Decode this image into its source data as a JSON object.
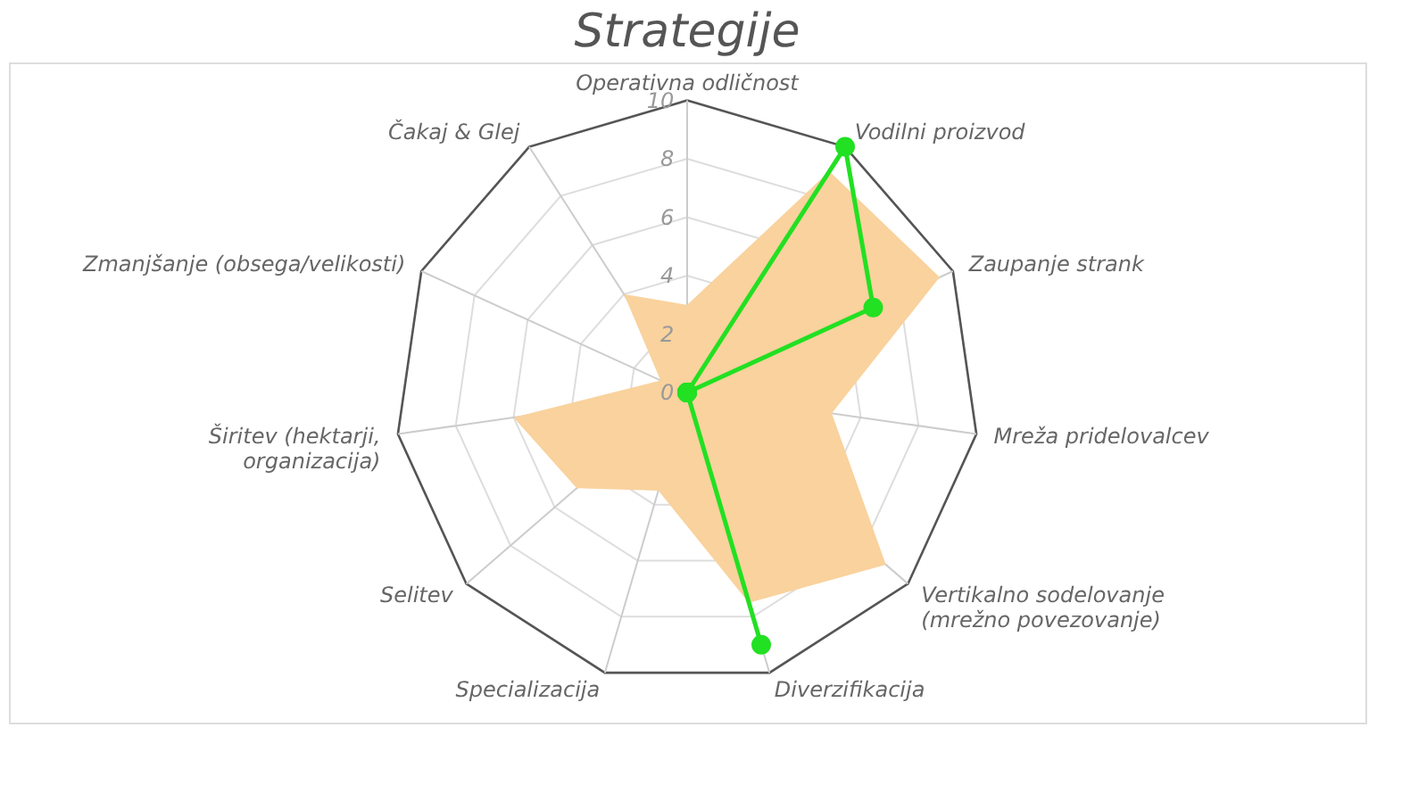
{
  "chart_data": {
    "type": "radar",
    "title": "Strategije",
    "categories": [
      "Operativna odličnost",
      "Vodilni proizvod",
      "Zaupanje strank",
      "Mreža pridelovalcev",
      "Vertikalno sodelovanje (mrežno povezovanje)",
      "Diverzifikacija",
      "Specializacija",
      "Selitev",
      "Širitev (hektarji, organizacija)",
      "Zmanjšanje (obsega/velikosti)",
      "Čakaj & Glej"
    ],
    "series": [
      {
        "marker": "none",
        "color": "#f9d29d",
        "values": [
          3,
          9,
          9.5,
          5,
          9,
          7.5,
          3.5,
          5,
          6,
          1,
          4
        ]
      },
      {
        "color": "#22e022",
        "values": [
          0,
          10,
          7,
          0,
          0,
          9,
          0,
          0,
          0,
          0,
          0
        ]
      }
    ],
    "ylim": [
      0,
      10
    ],
    "yticks": [
      0,
      2,
      4,
      6,
      8,
      10
    ],
    "grid": true,
    "marker": "circle"
  }
}
